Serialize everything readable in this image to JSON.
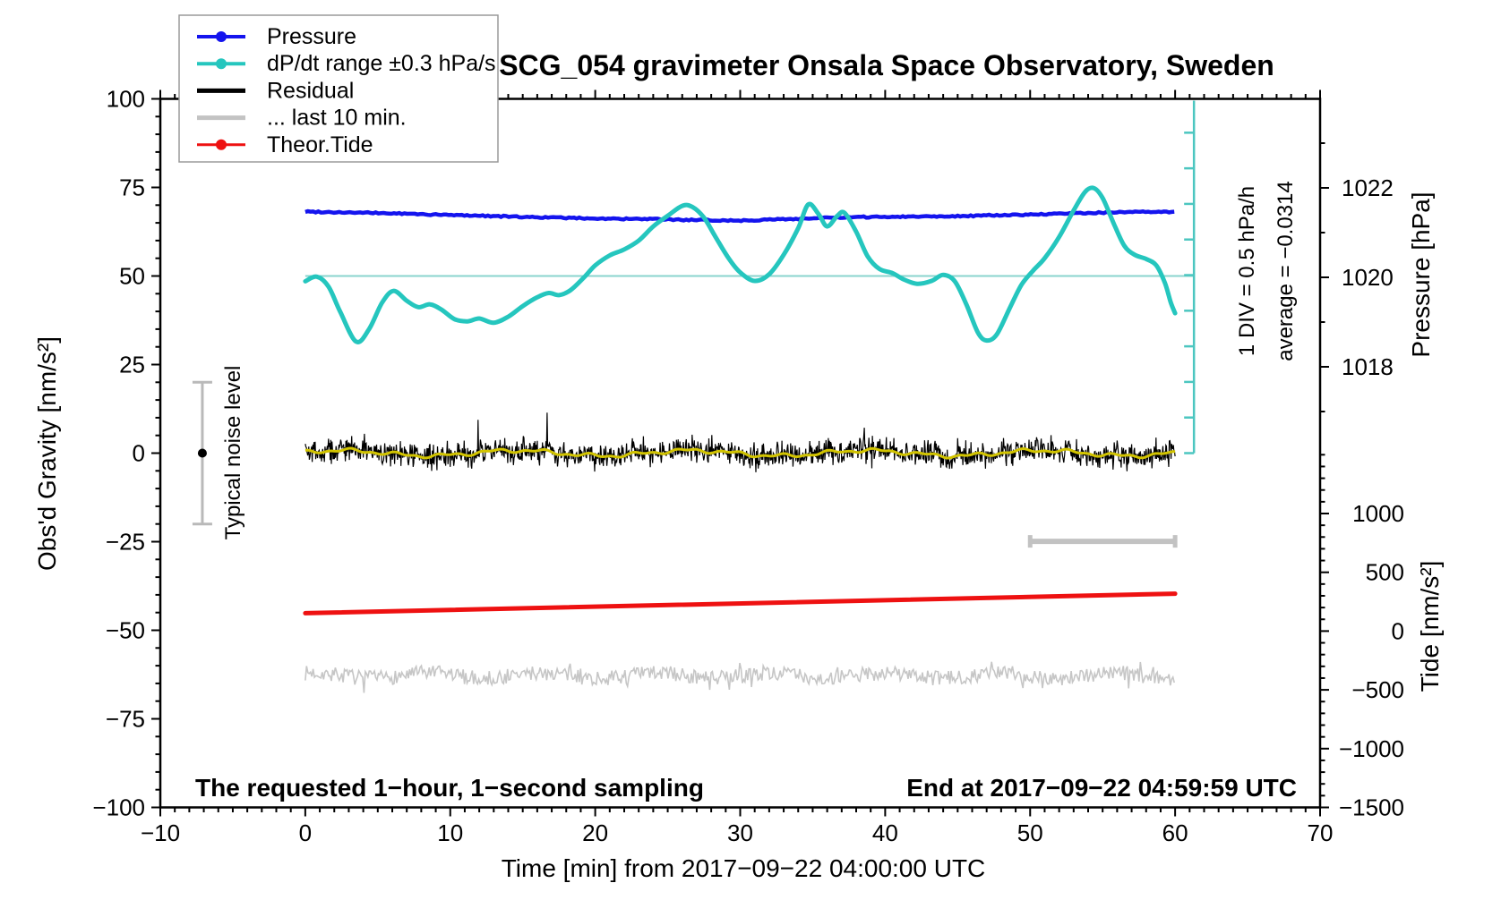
{
  "title": "SCG_054 gravimeter Onsala Space Observatory, Sweden",
  "legend": {
    "items": [
      {
        "label": "Pressure",
        "color": "#1414ee",
        "dot": true,
        "lw": 4
      },
      {
        "label": "dP/dt range ±0.3 hPa/s",
        "color": "#25c6be",
        "dot": true,
        "lw": 4
      },
      {
        "label": "Residual",
        "color": "#000000",
        "dot": false,
        "lw": 5
      },
      {
        "label": "... last 10 min.",
        "color": "#c3c3c3",
        "dot": false,
        "lw": 5
      },
      {
        "label": "Theor.Tide",
        "color": "#ee1111",
        "dot": true,
        "lw": 3
      }
    ]
  },
  "annotations": {
    "div_scale": "1 DIV = 0.5 hPa/h",
    "average": "average = −0.0314",
    "noise_level": "Typical noise level",
    "bottom_left": "The requested 1−hour, 1−second sampling",
    "bottom_right": "End at 2017−09−22 04:59:59 UTC"
  },
  "axes": {
    "x": {
      "label": "Time [min] from 2017−09−22 04:00:00 UTC",
      "range": [
        -10,
        70
      ],
      "minor_step": 1,
      "majors": [
        {
          "v": -10,
          "t": "−10"
        },
        {
          "v": 0,
          "t": "0"
        },
        {
          "v": 10,
          "t": "10"
        },
        {
          "v": 20,
          "t": "20"
        },
        {
          "v": 30,
          "t": "30"
        },
        {
          "v": 40,
          "t": "40"
        },
        {
          "v": 50,
          "t": "50"
        },
        {
          "v": 60,
          "t": "60"
        },
        {
          "v": 70,
          "t": "70"
        }
      ]
    },
    "gravity": {
      "label": "Obs'd Gravity [nm/s²]",
      "range": [
        -100,
        100
      ],
      "minor_step": 5,
      "majors": [
        {
          "v": 100,
          "t": "100"
        },
        {
          "v": 75,
          "t": "75"
        },
        {
          "v": 50,
          "t": "50"
        },
        {
          "v": 25,
          "t": "25"
        },
        {
          "v": 0,
          "t": "0"
        },
        {
          "v": -25,
          "t": "−25"
        },
        {
          "v": -50,
          "t": "−50"
        },
        {
          "v": -75,
          "t": "−75"
        },
        {
          "v": -100,
          "t": "−100"
        }
      ]
    },
    "pressure": {
      "label": "Pressure [hPa]",
      "majors": [
        {
          "v": 1022,
          "t": "1022"
        },
        {
          "v": 1020,
          "t": "1020"
        },
        {
          "v": 1018,
          "t": "1018"
        }
      ],
      "minors": [
        1023,
        1021,
        1019,
        1017
      ]
    },
    "tide": {
      "label": "Tide [nm/s²]",
      "minor_step": 100,
      "minor_range": [
        1500,
        -1500
      ],
      "majors": [
        {
          "v": 1000,
          "t": "1000"
        },
        {
          "v": 500,
          "t": "500"
        },
        {
          "v": 0,
          "t": "0"
        },
        {
          "v": -500,
          "t": "−500"
        },
        {
          "v": -1000,
          "t": "−1000"
        },
        {
          "v": -1500,
          "t": "−1500"
        }
      ]
    }
  },
  "chart_data": {
    "type": "line",
    "title": "SCG_054 gravimeter Onsala Space Observatory, Sweden",
    "x_range_min": [
      0,
      60
    ],
    "series": [
      {
        "name": "Pressure",
        "axis": "pressure",
        "color": "#1414ee",
        "width": 4.5,
        "jitter": 0.03,
        "step": 0.18,
        "points": [
          [
            0,
            1021.47
          ],
          [
            3,
            1021.45
          ],
          [
            6,
            1021.43
          ],
          [
            9,
            1021.4
          ],
          [
            12,
            1021.38
          ],
          [
            15,
            1021.35
          ],
          [
            18,
            1021.33
          ],
          [
            21,
            1021.31
          ],
          [
            24,
            1021.3
          ],
          [
            27,
            1021.28
          ],
          [
            30,
            1021.27
          ],
          [
            33,
            1021.3
          ],
          [
            36,
            1021.33
          ],
          [
            39,
            1021.35
          ],
          [
            42,
            1021.36
          ],
          [
            45,
            1021.37
          ],
          [
            48,
            1021.39
          ],
          [
            51,
            1021.41
          ],
          [
            54,
            1021.44
          ],
          [
            57,
            1021.46
          ],
          [
            60,
            1021.46
          ]
        ]
      },
      {
        "name": "dP/dt range ±0.3 hPa/s",
        "axis": "gravity",
        "color": "#25c6be",
        "width": 5,
        "smooth": true,
        "points": [
          [
            0,
            48.5
          ],
          [
            0.8,
            49.8
          ],
          [
            1.6,
            47.0
          ],
          [
            2.4,
            40.0
          ],
          [
            3.5,
            31.5
          ],
          [
            4.4,
            35.0
          ],
          [
            5.3,
            42.5
          ],
          [
            6.1,
            45.8
          ],
          [
            7.0,
            43.0
          ],
          [
            7.8,
            41.2
          ],
          [
            8.6,
            42.0
          ],
          [
            9.4,
            40.5
          ],
          [
            10.3,
            37.8
          ],
          [
            11.2,
            37.2
          ],
          [
            12.0,
            38.0
          ],
          [
            13.0,
            36.8
          ],
          [
            14.0,
            38.5
          ],
          [
            15.0,
            41.5
          ],
          [
            16.0,
            44.0
          ],
          [
            16.8,
            45.2
          ],
          [
            17.5,
            44.6
          ],
          [
            18.3,
            46.0
          ],
          [
            19.2,
            49.5
          ],
          [
            20.0,
            53.0
          ],
          [
            21.0,
            55.8
          ],
          [
            22.0,
            57.5
          ],
          [
            23.0,
            60.0
          ],
          [
            24.0,
            64.0
          ],
          [
            25.0,
            67.0
          ],
          [
            26.0,
            69.8
          ],
          [
            26.7,
            69.5
          ],
          [
            27.5,
            66.5
          ],
          [
            28.3,
            61.0
          ],
          [
            29.2,
            55.0
          ],
          [
            30.0,
            51.0
          ],
          [
            31.0,
            48.6
          ],
          [
            32.0,
            50.5
          ],
          [
            33.0,
            56.0
          ],
          [
            34.0,
            63.5
          ],
          [
            34.7,
            70.2
          ],
          [
            35.4,
            67.5
          ],
          [
            36.0,
            64.0
          ],
          [
            36.7,
            67.0
          ],
          [
            37.2,
            67.8
          ],
          [
            38.0,
            62.5
          ],
          [
            38.8,
            55.5
          ],
          [
            39.6,
            52.0
          ],
          [
            40.5,
            50.8
          ],
          [
            41.3,
            49.0
          ],
          [
            42.2,
            47.8
          ],
          [
            43.2,
            48.6
          ],
          [
            44.0,
            50.3
          ],
          [
            44.8,
            48.5
          ],
          [
            45.6,
            42.0
          ],
          [
            46.4,
            34.0
          ],
          [
            47.0,
            31.8
          ],
          [
            47.7,
            33.5
          ],
          [
            48.6,
            41.0
          ],
          [
            49.4,
            47.5
          ],
          [
            50.2,
            51.5
          ],
          [
            51.0,
            55.0
          ],
          [
            52.0,
            61.0
          ],
          [
            53.0,
            68.5
          ],
          [
            53.8,
            73.8
          ],
          [
            54.4,
            74.8
          ],
          [
            55.0,
            72.0
          ],
          [
            55.8,
            64.5
          ],
          [
            56.5,
            58.5
          ],
          [
            57.2,
            56.0
          ],
          [
            58.0,
            54.8
          ],
          [
            58.7,
            53.0
          ],
          [
            59.3,
            48.0
          ],
          [
            59.7,
            42.5
          ],
          [
            60.0,
            39.5
          ]
        ]
      },
      {
        "name": "Residual",
        "axis": "gravity",
        "color": "#000000",
        "width": 1.2,
        "generator": {
          "kind": "residual-noise",
          "seed": 42,
          "step": 0.04,
          "sigma": 3.0,
          "spike_prob": 0.007,
          "spike_amp": 5,
          "clamp": 12.5
        }
      },
      {
        "name": "Residual smoothed",
        "axis": "gravity",
        "color": "#d2c400",
        "width": 3,
        "generator": {
          "kind": "residual-smooth",
          "step": 0.15
        }
      },
      {
        "name": "Theor.Tide",
        "axis": "tide",
        "color": "#ee1111",
        "width": 5,
        "points": [
          [
            0,
            152
          ],
          [
            60,
            318
          ]
        ]
      },
      {
        "name": "... last 10 min.",
        "axis": "gravity",
        "color": "#c6c6c6",
        "width": 1.6,
        "generator": {
          "kind": "gray-noise",
          "seed": 7,
          "step": 0.09,
          "center": -62.8,
          "amp": 2.1,
          "spike_prob": 0.06,
          "spike_amp": 3.2
        }
      }
    ],
    "reference_line": {
      "axis": "gravity",
      "value": 50,
      "x_from": 0,
      "x_to": 61.3,
      "color": "#8ad4ce",
      "width": 2
    },
    "scale_bar": {
      "x_min": 61.3,
      "gravity_from": 0,
      "gravity_to": 99.5,
      "divisions": 10,
      "color": "#4cc6c0",
      "width": 2.5
    },
    "noise_errorbar": {
      "x_min": -7.1,
      "center_gravity": 0,
      "half_span_gravity": 20,
      "color": "#b9b9b9",
      "dot_color": "#000000"
    },
    "last10_bar": {
      "x_from_min": 50,
      "x_to_min": 60,
      "gravity": -24.9,
      "color": "#c2c2c2"
    }
  }
}
